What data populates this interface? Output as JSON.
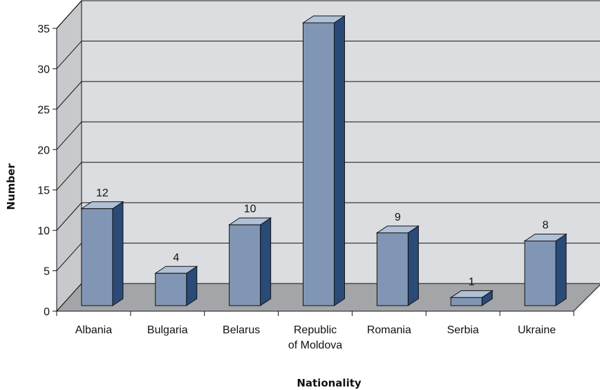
{
  "chart_data": {
    "type": "bar",
    "style": "3d-column",
    "xlabel": "Nationality",
    "ylabel": "Number",
    "categories": [
      "Albania",
      "Bulgaria",
      "Belarus",
      "Republic of Moldova",
      "Romania",
      "Serbia",
      "Ukraine"
    ],
    "category_lines": [
      [
        "Albania"
      ],
      [
        "Bulgaria"
      ],
      [
        "Belarus"
      ],
      [
        "Republic",
        "of Moldova"
      ],
      [
        "Romania"
      ],
      [
        "Serbia"
      ],
      [
        "Ukraine"
      ]
    ],
    "values": [
      12,
      4,
      10,
      35,
      9,
      1,
      8
    ],
    "data_labels": [
      "12",
      "4",
      "10",
      "",
      "9",
      "1",
      "8"
    ],
    "ylim": [
      0,
      35
    ],
    "yticks": [
      0,
      5,
      10,
      15,
      20,
      25,
      30,
      35
    ],
    "grid": true,
    "colors": {
      "bar_front": "#8096b4",
      "bar_side": "#2a4a78",
      "bar_top": "#b0c0d6",
      "wall": "#dcdde0",
      "side_wall": "#c8c9cc",
      "floor": "#a3a5a8"
    }
  }
}
